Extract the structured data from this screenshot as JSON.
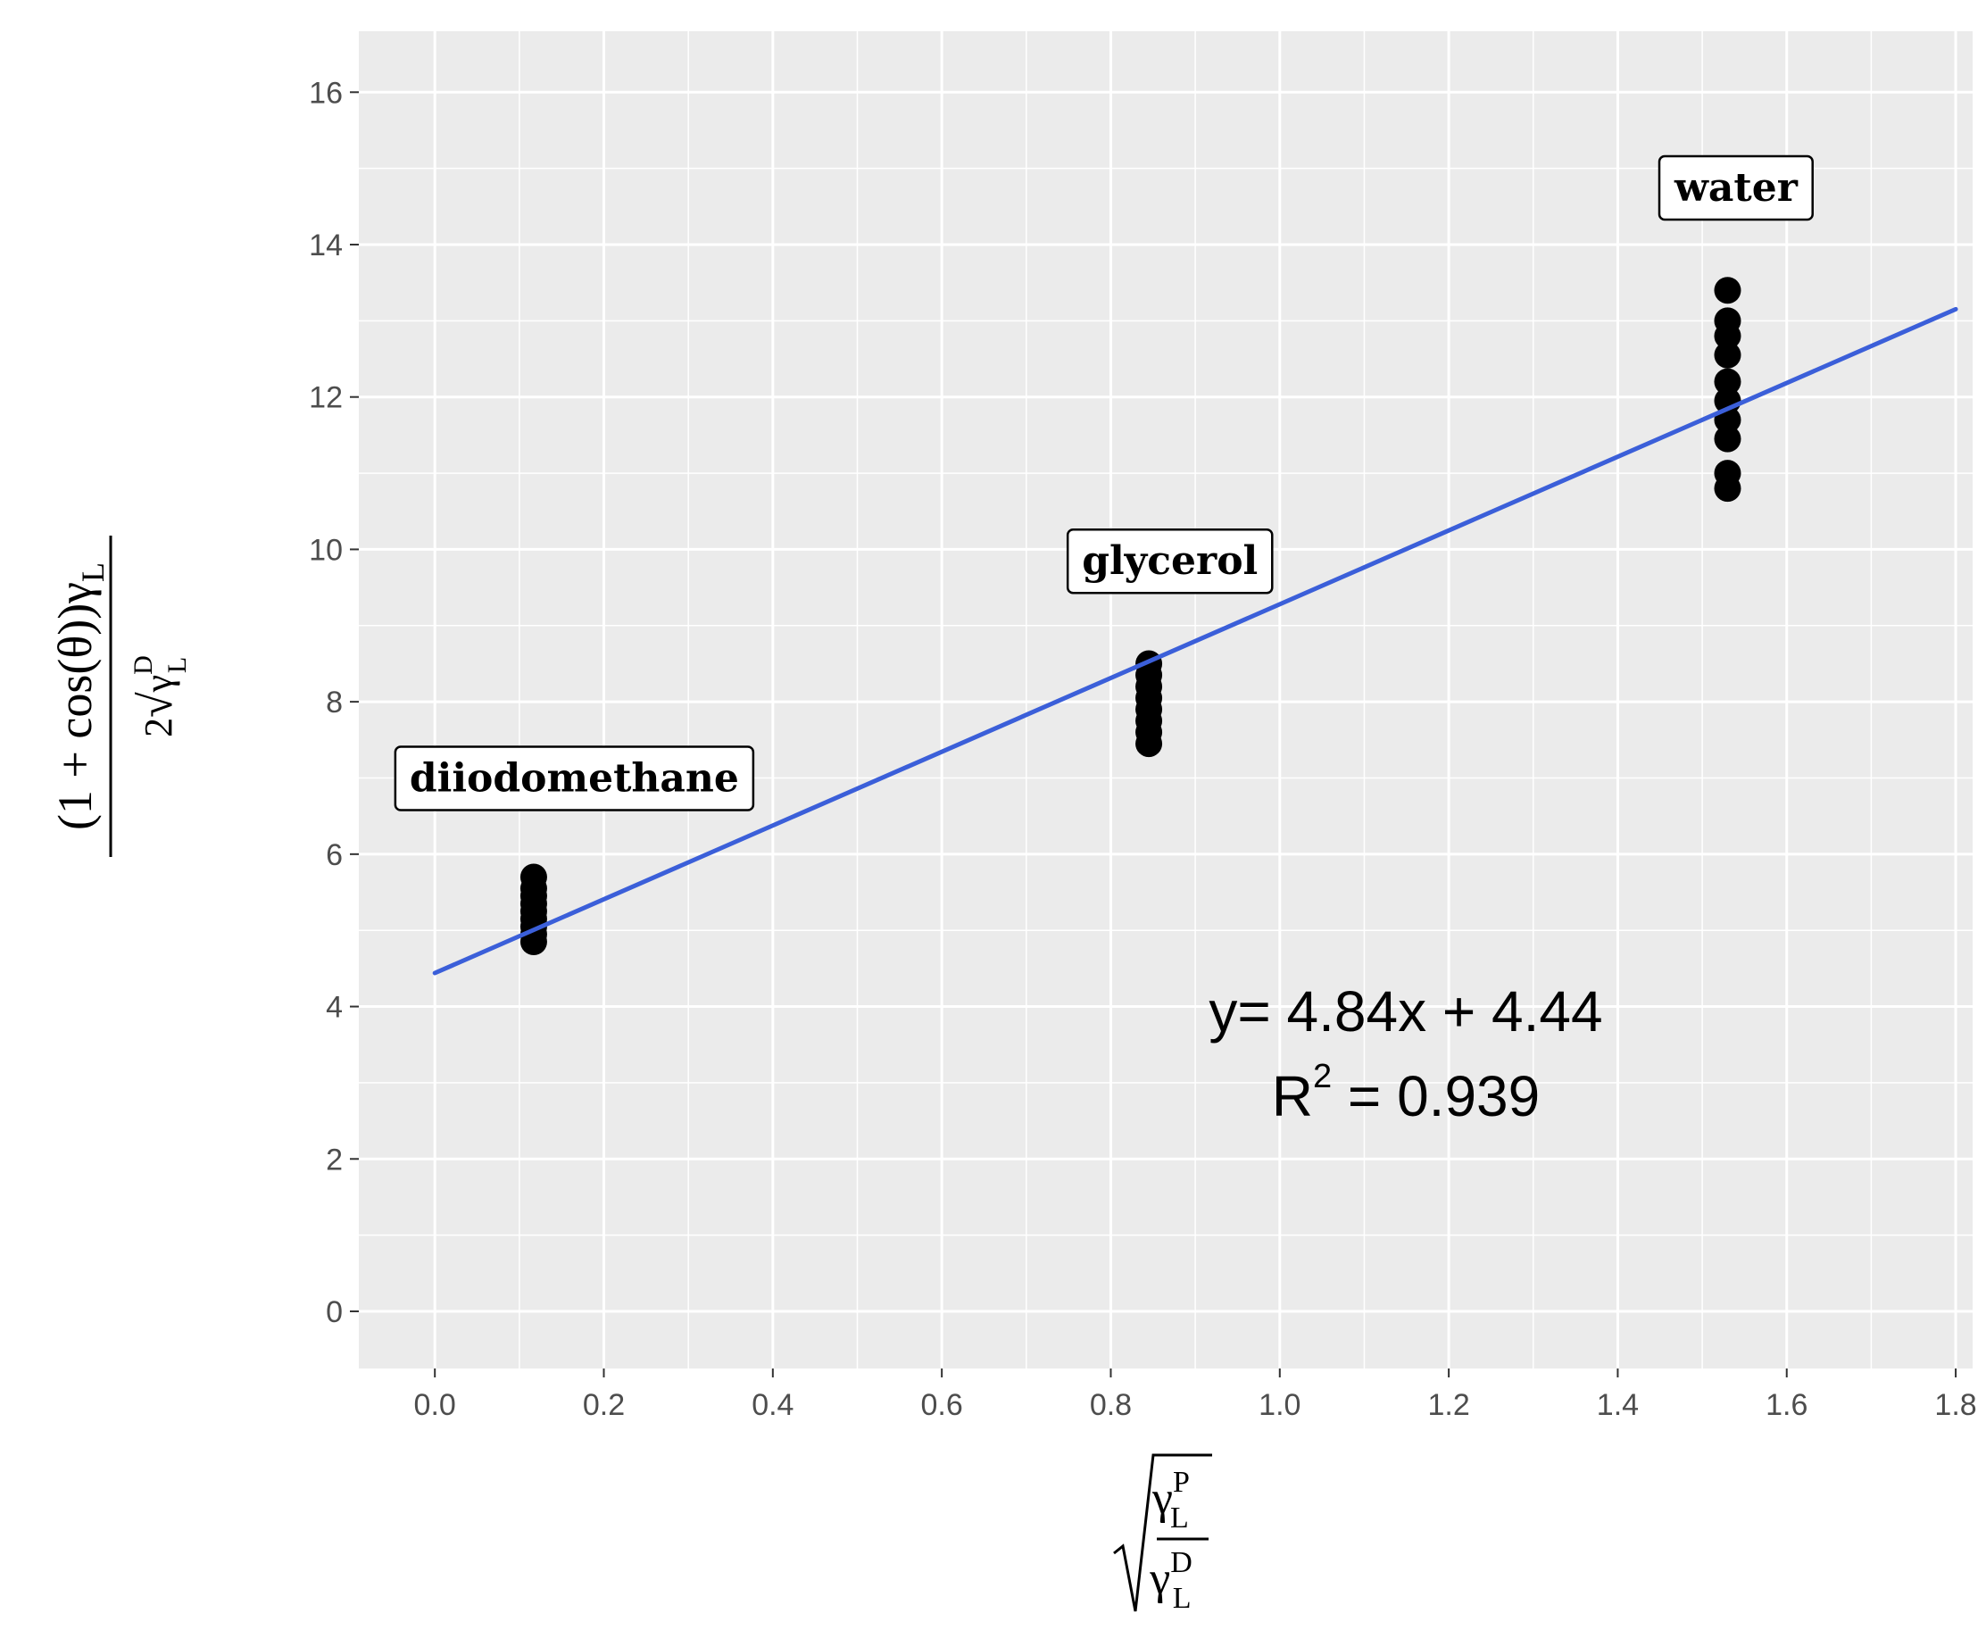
{
  "chart_data": {
    "type": "scatter",
    "xlim": [
      -0.09,
      1.82
    ],
    "ylim": [
      -0.75,
      16.8
    ],
    "x_ticks": [
      0.0,
      0.2,
      0.4,
      0.6,
      0.8,
      1.0,
      1.2,
      1.4,
      1.6,
      1.8
    ],
    "x_tick_labels": [
      "0.0",
      "0.2",
      "0.4",
      "0.6",
      "0.8",
      "1.0",
      "1.2",
      "1.4",
      "1.6",
      "1.8"
    ],
    "y_ticks": [
      0,
      2,
      4,
      6,
      8,
      10,
      12,
      14,
      16
    ],
    "y_tick_labels": [
      "0",
      "2",
      "4",
      "6",
      "8",
      "10",
      "12",
      "14",
      "16"
    ],
    "grid": true,
    "background": "#ebebeb",
    "gridline_color": "#ffffff",
    "point_color": "#000000",
    "fit_color": "#3b5fd9",
    "series": [
      {
        "label": "diiodomethane",
        "x": 0.117,
        "y": [
          4.85,
          4.95,
          5.05,
          5.15,
          5.25,
          5.35,
          5.45,
          5.55,
          5.7
        ],
        "label_at": [
          0.165,
          7.0
        ]
      },
      {
        "label": "glycerol",
        "x": 0.845,
        "y": [
          7.45,
          7.6,
          7.75,
          7.9,
          8.05,
          8.2,
          8.35,
          8.5
        ],
        "label_at": [
          0.87,
          9.85
        ]
      },
      {
        "label": "water",
        "x": 1.53,
        "y": [
          10.8,
          11.0,
          11.45,
          11.7,
          11.95,
          12.2,
          12.55,
          12.8,
          13.0,
          13.4
        ],
        "label_at": [
          1.54,
          14.75
        ]
      }
    ],
    "fit": {
      "slope": 4.84,
      "intercept": 4.44,
      "x_range": [
        0.0,
        1.8
      ]
    },
    "equation_text": "y= 4.84x + 4.44",
    "r2_prefix": "R",
    "r2_exp": "2",
    "r2_value": " = 0.939",
    "ylabel": {
      "num": "(1 + cos(θ))γ",
      "num_sub": "L",
      "den_pre": "2",
      "den_var": "γ",
      "den_sup": "D",
      "den_sub": "L"
    },
    "xlabel": {
      "num_var": "γ",
      "num_sup": "P",
      "num_sub": "L",
      "den_var": "γ",
      "den_sup": "D",
      "den_sub": "L"
    }
  }
}
